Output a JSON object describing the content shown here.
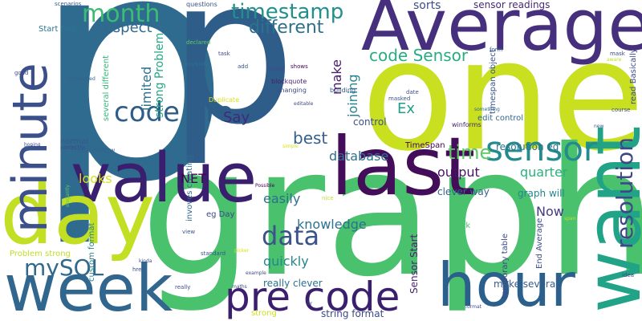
{
  "word_cloud": {
    "words": [
      {
        "text": "p",
        "color": "#2f6b8e"
      },
      {
        "text": "p",
        "color": "#2f5d8a"
      },
      {
        "text": "one",
        "color": "#c8e020"
      },
      {
        "text": "graph",
        "color": "#4ac16d"
      },
      {
        "text": "Average",
        "color": "#46307e"
      },
      {
        "text": "value",
        "color": "#3b1f6f"
      },
      {
        "text": "last",
        "color": "#440d5a"
      },
      {
        "text": "day",
        "color": "#c2df23"
      },
      {
        "text": "week",
        "color": "#31668e"
      },
      {
        "text": "hour",
        "color": "#2b5f8c"
      },
      {
        "text": "want",
        "color": "#20a386"
      },
      {
        "text": "minute",
        "color": "#3b4f8a"
      },
      {
        "text": "pre code",
        "color": "#3b1f6f"
      },
      {
        "text": "code pre",
        "color": "#2f5d8a"
      },
      {
        "text": "sensor",
        "color": "#238a8d"
      },
      {
        "text": "month",
        "color": "#3dbc74"
      },
      {
        "text": "timestamp",
        "color": "#21908d"
      },
      {
        "text": "resolution",
        "color": "#3f4788"
      },
      {
        "text": "data",
        "color": "#3b528b"
      },
      {
        "text": "code Sensor",
        "color": "#27ad81"
      },
      {
        "text": "different",
        "color": "#2c728e"
      },
      {
        "text": "suspect",
        "color": "#31688e"
      },
      {
        "text": "sorts",
        "color": "#3e4c8a"
      },
      {
        "text": "sensor readings",
        "color": "#482878"
      },
      {
        "text": "mySQL",
        "color": "#31688e"
      },
      {
        "text": "time",
        "color": "#5ec962"
      },
      {
        "text": "best",
        "color": "#35608d"
      },
      {
        "text": "Say",
        "color": "#3f2a7a"
      },
      {
        "text": "Ex",
        "color": "#1fa088"
      },
      {
        "text": "make",
        "color": "#481b6d"
      },
      {
        "text": "joining",
        "color": "#25858e"
      },
      {
        "text": "limited",
        "color": "#2c728e"
      },
      {
        "text": "strong Problem",
        "color": "#22a884"
      },
      {
        "text": "NET",
        "color": "#440154"
      },
      {
        "text": "looks",
        "color": "#d2e21b"
      },
      {
        "text": "easily",
        "color": "#2d708e"
      },
      {
        "text": "database",
        "color": "#2c728e"
      },
      {
        "text": "output",
        "color": "#471365"
      },
      {
        "text": "quarter",
        "color": "#2ab07f"
      },
      {
        "text": "knowledge",
        "color": "#2c728e"
      },
      {
        "text": "quickly",
        "color": "#24878e"
      },
      {
        "text": "Now",
        "color": "#443a83"
      },
      {
        "text": "graph will",
        "color": "#24868e"
      },
      {
        "text": "resolution eg",
        "color": "#2c728e"
      },
      {
        "text": "really clever",
        "color": "#2c728e"
      },
      {
        "text": "make several",
        "color": "#365c8d"
      },
      {
        "text": "string format",
        "color": "#3e4989"
      },
      {
        "text": "control",
        "color": "#3b528b"
      },
      {
        "text": "clever way",
        "color": "#33638d"
      },
      {
        "text": "TimeSpan",
        "color": "#440154"
      },
      {
        "text": "edit control",
        "color": "#31688e"
      },
      {
        "text": "timespan object",
        "color": "#3b528b"
      },
      {
        "text": "Sensor Start",
        "color": "#481f70"
      },
      {
        "text": "End Average",
        "color": "#3e4c8a"
      },
      {
        "text": "temporary table",
        "color": "#3e4a89"
      },
      {
        "text": "read Basically",
        "color": "#3e4a89"
      },
      {
        "text": "Start End",
        "color": "#2a768e"
      },
      {
        "text": "several different",
        "color": "#35b779"
      },
      {
        "text": "invoves creating",
        "color": "#31688e"
      },
      {
        "text": "eg Day",
        "color": "#3f4788"
      },
      {
        "text": "Problem strong",
        "color": "#bddf26"
      },
      {
        "text": "custom format",
        "color": "#26828e"
      },
      {
        "text": "normal",
        "color": "#39568c"
      },
      {
        "text": "work",
        "color": "#48c16e"
      },
      {
        "text": "strong",
        "color": "#cde11d"
      },
      {
        "text": "Duplicate",
        "color": "#d8e219"
      },
      {
        "text": "blockquote",
        "color": "#481c6e"
      },
      {
        "text": "changing",
        "color": "#3e4989"
      },
      {
        "text": "building",
        "color": "#375a8c"
      },
      {
        "text": "winforms",
        "color": "#482173"
      },
      {
        "text": "stackoverflow",
        "color": "#33638d"
      },
      {
        "text": "questions",
        "color": "#3b528b"
      },
      {
        "text": "scenarios",
        "color": "#365c8d"
      },
      {
        "text": "task",
        "color": "#3e4c8a"
      },
      {
        "text": "declared",
        "color": "#5ec962"
      },
      {
        "text": "form",
        "color": "#355f8d"
      },
      {
        "text": "mask",
        "color": "#3e4c8a"
      },
      {
        "text": "aware",
        "color": "#c0df25"
      },
      {
        "text": "anybody",
        "color": "#2c728e"
      },
      {
        "text": "add",
        "color": "#3b528b"
      },
      {
        "text": "handle",
        "color": "#3e4989"
      },
      {
        "text": "shows",
        "color": "#440154"
      },
      {
        "text": "good",
        "color": "#3e4a89"
      },
      {
        "text": "complicated",
        "color": "#33638d"
      },
      {
        "text": "date",
        "color": "#3e4c8a"
      },
      {
        "text": "masked",
        "color": "#3b528b"
      },
      {
        "text": "editable",
        "color": "#3e4a89"
      },
      {
        "text": "hoping",
        "color": "#3e4c8a"
      },
      {
        "text": "got",
        "color": "#35608d"
      },
      {
        "text": "correctly",
        "color": "#3e4989"
      },
      {
        "text": "elegantly",
        "color": "#5ec962"
      },
      {
        "text": "simple",
        "color": "#d8e219"
      },
      {
        "text": "something",
        "color": "#31688e"
      },
      {
        "text": "new",
        "color": "#39568c"
      },
      {
        "text": "course",
        "color": "#3e4c8a"
      },
      {
        "text": "Possible",
        "color": "#440154"
      },
      {
        "text": "picker",
        "color": "#d8e219"
      },
      {
        "text": "nice",
        "color": "#bddf26"
      },
      {
        "text": "view",
        "color": "#39568c"
      },
      {
        "text": "standard",
        "color": "#39568c"
      },
      {
        "text": "kinda",
        "color": "#3b528b"
      },
      {
        "text": "href",
        "color": "#3b528b"
      },
      {
        "text": "example",
        "color": "#3e4a89"
      },
      {
        "text": "maths",
        "color": "#3b528b"
      },
      {
        "text": "really",
        "color": "#3e4989"
      },
      {
        "text": "br",
        "color": "#3e4c8a"
      },
      {
        "text": "format",
        "color": "#3e4a89"
      },
      {
        "text": "span",
        "color": "#c0df25"
      },
      {
        "text": "idea",
        "color": "#3e4c8a"
      }
    ]
  }
}
